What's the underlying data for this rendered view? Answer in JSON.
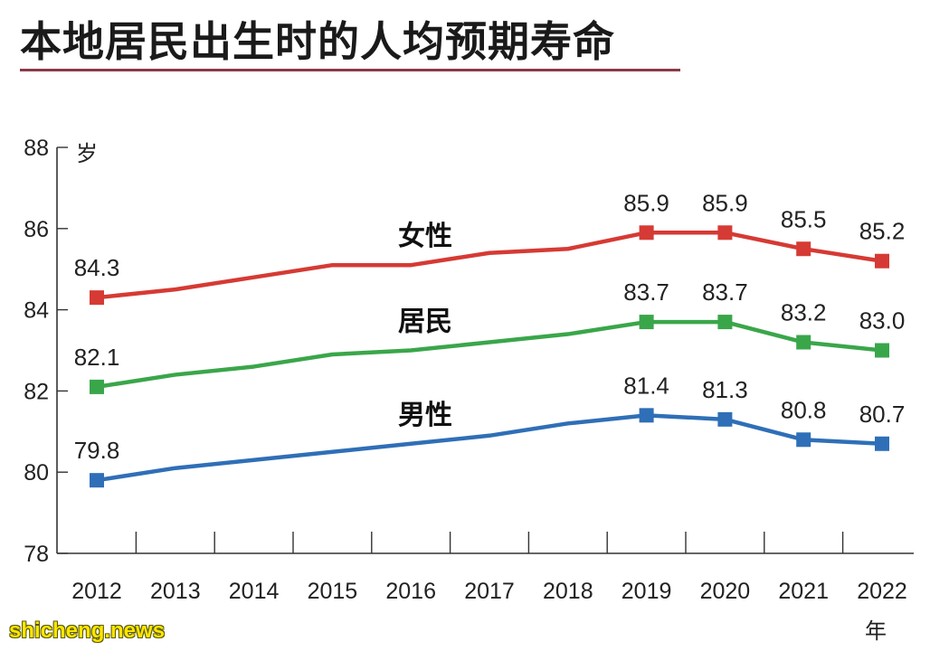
{
  "title": "本地居民出生时的人均预期寿命",
  "watermark": "shicheng.news",
  "chart_data": {
    "type": "line",
    "title": "本地居民出生时的人均预期寿命",
    "ylabel": "岁",
    "xlabel": "年",
    "ylim": [
      78,
      88
    ],
    "yticks": [
      78,
      80,
      82,
      84,
      86,
      88
    ],
    "categories": [
      "2012",
      "2013",
      "2014",
      "2015",
      "2016",
      "2017",
      "2018",
      "2019",
      "2020",
      "2021",
      "2022"
    ],
    "grid": false,
    "series": [
      {
        "name": "女性",
        "color": "#d63a34",
        "values": [
          84.3,
          84.5,
          84.8,
          85.1,
          85.1,
          85.4,
          85.5,
          85.9,
          85.9,
          85.5,
          85.2
        ],
        "labeled": [
          84.3,
          null,
          null,
          null,
          null,
          null,
          null,
          85.9,
          85.9,
          85.5,
          85.2
        ]
      },
      {
        "name": "居民",
        "color": "#3aa64a",
        "values": [
          82.1,
          82.4,
          82.6,
          82.9,
          83.0,
          83.2,
          83.4,
          83.7,
          83.7,
          83.2,
          83.0
        ],
        "labeled": [
          82.1,
          null,
          null,
          null,
          null,
          null,
          null,
          83.7,
          83.7,
          83.2,
          83.0
        ]
      },
      {
        "name": "男性",
        "color": "#2f6fb7",
        "values": [
          79.8,
          80.1,
          80.3,
          80.5,
          80.7,
          80.9,
          81.2,
          81.4,
          81.3,
          80.8,
          80.7
        ],
        "labeled": [
          79.8,
          null,
          null,
          null,
          null,
          null,
          null,
          81.4,
          81.3,
          80.8,
          80.7
        ]
      }
    ]
  }
}
